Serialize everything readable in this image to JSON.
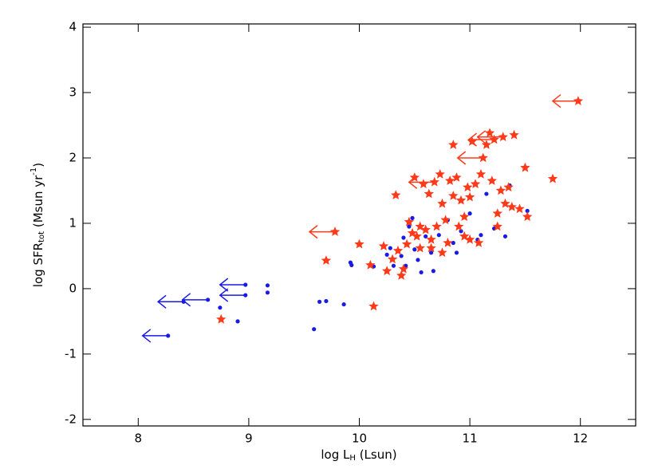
{
  "chart_data": {
    "type": "scatter",
    "xlabel": [
      "log L",
      "H",
      " (Lsun)"
    ],
    "ylabel": [
      "log SFR",
      "tot",
      " (Msun yr",
      "-1",
      ")"
    ],
    "xlim": [
      7.5,
      12.5
    ],
    "ylim": [
      -2.1,
      4.05
    ],
    "xticks": [
      8,
      9,
      10,
      11,
      12
    ],
    "yticks": [
      -2,
      -1,
      0,
      1,
      2,
      3,
      4
    ],
    "grid": false,
    "series": [
      {
        "color": "#1a1ae6",
        "marker": "dot",
        "limit_arrow": false,
        "x": [
          8.74,
          8.9,
          9.17,
          9.17,
          9.59,
          9.64,
          9.7,
          9.86,
          9.92,
          9.93,
          10.13,
          10.25,
          10.28,
          10.31,
          10.33,
          10.4,
          10.45,
          10.48,
          10.5,
          10.53,
          10.56,
          10.6,
          10.65,
          10.67,
          10.72,
          10.8,
          10.88,
          10.92,
          11.07,
          11.1,
          11.15,
          11.22,
          11.32,
          11.36,
          11.52,
          10.42,
          10.38,
          10.85,
          11.0
        ],
        "y": [
          -0.29,
          -0.5,
          0.05,
          -0.06,
          -0.62,
          -0.2,
          -0.19,
          -0.24,
          0.4,
          0.36,
          0.34,
          0.52,
          0.62,
          0.35,
          1.43,
          0.78,
          0.95,
          1.08,
          0.6,
          0.44,
          0.25,
          0.8,
          0.55,
          0.27,
          0.82,
          1.05,
          0.55,
          0.88,
          0.75,
          0.82,
          1.45,
          0.92,
          0.8,
          1.58,
          1.19,
          0.35,
          0.5,
          0.7,
          1.15
        ]
      },
      {
        "color": "#1a1ae6",
        "marker": "dot",
        "limit_arrow": true,
        "x": [
          8.27,
          8.41,
          8.63,
          8.97,
          8.97
        ],
        "y": [
          -0.72,
          -0.2,
          -0.17,
          0.06,
          -0.1
        ]
      },
      {
        "color": "#ff3a1a",
        "marker": "star",
        "limit_arrow": false,
        "x": [
          8.75,
          9.7,
          10.0,
          10.1,
          10.13,
          10.22,
          10.25,
          10.3,
          10.33,
          10.35,
          10.38,
          10.4,
          10.43,
          10.45,
          10.48,
          10.5,
          10.52,
          10.55,
          10.58,
          10.6,
          10.63,
          10.65,
          10.7,
          10.73,
          10.75,
          10.78,
          10.8,
          10.82,
          10.85,
          10.85,
          10.88,
          10.9,
          10.92,
          10.95,
          10.98,
          11.0,
          11.02,
          11.05,
          11.08,
          11.1,
          11.15,
          11.18,
          11.2,
          11.25,
          11.28,
          11.32,
          11.35,
          11.38,
          11.4,
          11.45,
          11.5,
          11.52,
          11.75,
          10.95,
          11.0,
          11.25,
          10.55,
          10.65,
          10.75
        ],
        "y": [
          -0.47,
          0.43,
          0.68,
          0.36,
          -0.27,
          0.65,
          0.27,
          0.45,
          1.43,
          0.58,
          0.2,
          0.3,
          0.68,
          1.02,
          0.85,
          1.7,
          0.8,
          0.62,
          1.6,
          0.9,
          1.45,
          0.75,
          0.95,
          1.75,
          1.3,
          1.05,
          0.7,
          1.65,
          1.42,
          2.2,
          1.7,
          0.95,
          1.35,
          0.8,
          1.55,
          1.4,
          2.25,
          1.6,
          0.7,
          1.75,
          2.2,
          2.38,
          1.65,
          1.15,
          1.5,
          1.3,
          1.55,
          1.25,
          2.35,
          1.22,
          1.85,
          1.1,
          1.68,
          1.1,
          0.75,
          0.95,
          0.95,
          0.62,
          0.55
        ]
      },
      {
        "color": "#ff3a1a",
        "marker": "star",
        "limit_arrow": true,
        "x": [
          9.78,
          10.68,
          11.12,
          11.22,
          11.3,
          11.98
        ],
        "y": [
          0.87,
          1.63,
          2.0,
          2.28,
          2.32,
          2.87
        ]
      }
    ]
  }
}
